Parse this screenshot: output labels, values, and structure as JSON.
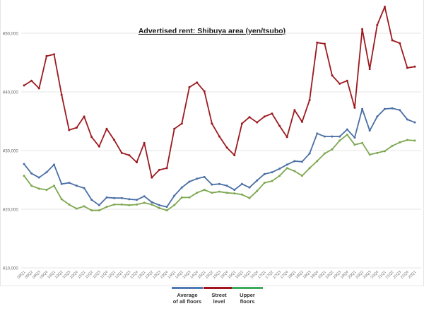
{
  "chart_data": {
    "type": "line",
    "title": "Advertised rent: Shibuya area (yen/tsubo)",
    "xlabel": "",
    "ylabel": "",
    "ylim": [
      10000,
      50000
    ],
    "yticks": [
      50000,
      40000,
      30000,
      20000,
      10000
    ],
    "ytick_labels": [
      "¥50,000",
      "¥40,000",
      "¥30,000",
      "¥20,000",
      "¥10,000"
    ],
    "grid": "horizontal",
    "legend_position": "bottom",
    "categories": [
      "09Q1",
      "09Q2",
      "09Q3",
      "09Q4",
      "10Q1",
      "10Q2",
      "10Q3",
      "10Q4",
      "11Q1",
      "11Q2",
      "11Q3",
      "11Q4",
      "12Q1",
      "12Q2",
      "12Q3",
      "12Q4",
      "13Q1",
      "13Q2",
      "13Q3",
      "13Q4",
      "14Q1",
      "14Q2",
      "14Q3",
      "14Q4",
      "15Q1",
      "15Q2",
      "15Q3",
      "15Q4",
      "16Q1",
      "16Q2",
      "16Q3",
      "16Q4",
      "17Q1",
      "17Q2",
      "17Q3",
      "17Q4",
      "18Q1",
      "18Q2",
      "18Q3",
      "18Q4",
      "19Q1",
      "19Q2",
      "19Q3",
      "19Q4",
      "20Q1",
      "20Q2",
      "20Q3",
      "20Q4",
      "21Q1",
      "21Q2",
      "21Q3",
      "21Q4",
      "22Q1"
    ],
    "series": [
      {
        "name": "Average of all floors",
        "color": "#4a6fa5",
        "values": [
          27700,
          26100,
          25400,
          26300,
          27600,
          24300,
          24500,
          24000,
          23600,
          21600,
          20700,
          22000,
          21900,
          21900,
          21700,
          21600,
          22200,
          21200,
          20700,
          20400,
          22300,
          23700,
          24700,
          25200,
          25500,
          24200,
          24300,
          24000,
          23300,
          24300,
          23700,
          24900,
          26000,
          26300,
          26900,
          27600,
          28200,
          28100,
          29500,
          32900,
          32400,
          32400,
          32400,
          33600,
          32200,
          37100,
          33400,
          35800,
          37100,
          37200,
          36900,
          35300,
          34800
        ]
      },
      {
        "name": "Street level",
        "color": "#9c1a1f",
        "values": [
          41100,
          41900,
          40600,
          46100,
          46400,
          39500,
          33500,
          33900,
          35800,
          32300,
          30700,
          33700,
          31800,
          29600,
          29200,
          28000,
          31300,
          25400,
          26700,
          27000,
          33700,
          34600,
          40800,
          41600,
          40100,
          34600,
          32400,
          30500,
          29200,
          34600,
          35700,
          34800,
          35800,
          36300,
          34200,
          32300,
          36900,
          34900,
          38600,
          48400,
          48200,
          42800,
          41400,
          41900,
          37300,
          50700,
          43900,
          51400,
          54500,
          48800,
          48300,
          44100,
          44300
        ]
      },
      {
        "name": "Upper floors",
        "color": "#7da850",
        "values": [
          25700,
          24000,
          23500,
          23300,
          24000,
          21700,
          20800,
          20100,
          20500,
          19800,
          19800,
          20400,
          20800,
          20800,
          20700,
          20800,
          21100,
          20800,
          20200,
          19800,
          20700,
          22000,
          22000,
          22800,
          23300,
          22800,
          23000,
          22800,
          22700,
          22500,
          21900,
          23100,
          24500,
          24800,
          25700,
          27000,
          26500,
          25700,
          27000,
          28200,
          29500,
          30200,
          31700,
          32700,
          31000,
          31300,
          29300,
          29600,
          29900,
          30800,
          31400,
          31800,
          31700
        ]
      }
    ]
  },
  "legend": {
    "items": [
      {
        "label": "Average\nof all floors",
        "color": "#4f7ab3"
      },
      {
        "label": "Street\nlevel",
        "color": "#a3121e"
      },
      {
        "label": "Upper\nfloors",
        "color": "#3caa5c"
      }
    ]
  }
}
